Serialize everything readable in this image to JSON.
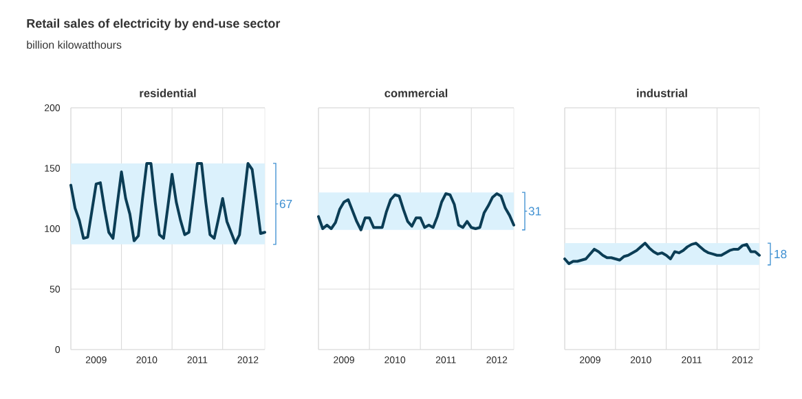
{
  "chart_data": [
    {
      "type": "line",
      "title": "Retail sales of electricity by end-use sector",
      "subtitle": "billion kilowatthours",
      "ylim": [
        0,
        200
      ],
      "yticks": [
        0,
        50,
        100,
        150,
        200
      ],
      "grid": true,
      "xlim": [
        "2009-01",
        "2012-11"
      ],
      "xticks": [
        {
          "value": "2009-01",
          "label": null
        },
        {
          "value": "2009-07",
          "label": "2009"
        },
        {
          "value": "2010-01",
          "label": null
        },
        {
          "value": "2010-07",
          "label": "2010"
        },
        {
          "value": "2011-01",
          "label": null
        },
        {
          "value": "2011-07",
          "label": "2011"
        },
        {
          "value": "2012-01",
          "label": null
        },
        {
          "value": "2012-07",
          "label": "2012"
        }
      ],
      "x": [
        "2009-01",
        "2009-02",
        "2009-03",
        "2009-04",
        "2009-05",
        "2009-06",
        "2009-07",
        "2009-08",
        "2009-09",
        "2009-10",
        "2009-11",
        "2009-12",
        "2010-01",
        "2010-02",
        "2010-03",
        "2010-04",
        "2010-05",
        "2010-06",
        "2010-07",
        "2010-08",
        "2010-09",
        "2010-10",
        "2010-11",
        "2010-12",
        "2011-01",
        "2011-02",
        "2011-03",
        "2011-04",
        "2011-05",
        "2011-06",
        "2011-07",
        "2011-08",
        "2011-09",
        "2011-10",
        "2011-11",
        "2011-12",
        "2012-01",
        "2012-02",
        "2012-03",
        "2012-04",
        "2012-05",
        "2012-06",
        "2012-07",
        "2012-08",
        "2012-09",
        "2012-10",
        "2012-11"
      ],
      "series": [
        {
          "name": "residential",
          "color": "#0b3d55",
          "values": [
            136,
            117,
            107,
            92,
            93,
            115,
            137,
            138,
            116,
            97,
            92,
            120,
            147,
            125,
            112,
            90,
            94,
            125,
            154,
            154,
            122,
            95,
            92,
            118,
            145,
            122,
            107,
            95,
            97,
            125,
            154,
            154,
            122,
            95,
            92,
            108,
            125,
            106,
            97,
            88,
            95,
            124,
            154,
            149,
            123,
            96,
            97
          ]
        }
      ],
      "bands": [
        {
          "axis": "y",
          "from": 87,
          "to": 154,
          "label": "67",
          "color": "#dbf1fc"
        }
      ]
    },
    {
      "type": "line",
      "ylim": [
        0,
        200
      ],
      "yticks": [
        0,
        50,
        100,
        150,
        200
      ],
      "grid": true,
      "tick_labels": "x",
      "xlim": [
        "2009-01",
        "2012-11"
      ],
      "xticks": [
        {
          "value": "2009-01",
          "label": null
        },
        {
          "value": "2009-07",
          "label": "2009"
        },
        {
          "value": "2010-01",
          "label": null
        },
        {
          "value": "2010-07",
          "label": "2010"
        },
        {
          "value": "2011-01",
          "label": null
        },
        {
          "value": "2011-07",
          "label": "2011"
        },
        {
          "value": "2012-01",
          "label": null
        },
        {
          "value": "2012-07",
          "label": "2012"
        }
      ],
      "x": [
        "2009-01",
        "2009-02",
        "2009-03",
        "2009-04",
        "2009-05",
        "2009-06",
        "2009-07",
        "2009-08",
        "2009-09",
        "2009-10",
        "2009-11",
        "2009-12",
        "2010-01",
        "2010-02",
        "2010-03",
        "2010-04",
        "2010-05",
        "2010-06",
        "2010-07",
        "2010-08",
        "2010-09",
        "2010-10",
        "2010-11",
        "2010-12",
        "2011-01",
        "2011-02",
        "2011-03",
        "2011-04",
        "2011-05",
        "2011-06",
        "2011-07",
        "2011-08",
        "2011-09",
        "2011-10",
        "2011-11",
        "2011-12",
        "2012-01",
        "2012-02",
        "2012-03",
        "2012-04",
        "2012-05",
        "2012-06",
        "2012-07",
        "2012-08",
        "2012-09",
        "2012-10",
        "2012-11"
      ],
      "series": [
        {
          "name": "commercial",
          "color": "#0b3d55",
          "values": [
            110,
            100,
            103,
            100,
            105,
            116,
            122,
            124,
            115,
            106,
            99,
            109,
            109,
            101,
            101,
            101,
            114,
            124,
            128,
            127,
            116,
            106,
            102,
            109,
            109,
            101,
            103,
            101,
            110,
            122,
            129,
            128,
            120,
            103,
            101,
            106,
            101,
            100,
            101,
            113,
            119,
            126,
            129,
            127,
            117,
            111,
            103
          ]
        }
      ],
      "bands": [
        {
          "axis": "y",
          "from": 99,
          "to": 130,
          "label": "31",
          "color": "#dbf1fc"
        }
      ]
    },
    {
      "type": "line",
      "ylim": [
        0,
        200
      ],
      "yticks": [
        0,
        50,
        100,
        150,
        200
      ],
      "grid": true,
      "tick_labels": "x",
      "xlim": [
        "2009-01",
        "2012-11"
      ],
      "xticks": [
        {
          "value": "2009-01",
          "label": null
        },
        {
          "value": "2009-07",
          "label": "2009"
        },
        {
          "value": "2010-01",
          "label": null
        },
        {
          "value": "2010-07",
          "label": "2010"
        },
        {
          "value": "2011-01",
          "label": null
        },
        {
          "value": "2011-07",
          "label": "2011"
        },
        {
          "value": "2012-01",
          "label": null
        },
        {
          "value": "2012-07",
          "label": "2012"
        }
      ],
      "x": [
        "2009-01",
        "2009-02",
        "2009-03",
        "2009-04",
        "2009-05",
        "2009-06",
        "2009-07",
        "2009-08",
        "2009-09",
        "2009-10",
        "2009-11",
        "2009-12",
        "2010-01",
        "2010-02",
        "2010-03",
        "2010-04",
        "2010-05",
        "2010-06",
        "2010-07",
        "2010-08",
        "2010-09",
        "2010-10",
        "2010-11",
        "2010-12",
        "2011-01",
        "2011-02",
        "2011-03",
        "2011-04",
        "2011-05",
        "2011-06",
        "2011-07",
        "2011-08",
        "2011-09",
        "2011-10",
        "2011-11",
        "2011-12",
        "2012-01",
        "2012-02",
        "2012-03",
        "2012-04",
        "2012-05",
        "2012-06",
        "2012-07",
        "2012-08",
        "2012-09",
        "2012-10",
        "2012-11"
      ],
      "series": [
        {
          "name": "industrial",
          "color": "#0b3d55",
          "values": [
            75,
            71,
            73,
            73,
            74,
            75,
            79,
            83,
            81,
            78,
            76,
            76,
            75,
            74,
            77,
            78,
            80,
            82,
            85,
            88,
            84,
            81,
            79,
            80,
            78,
            75,
            81,
            80,
            82,
            85,
            87,
            88,
            85,
            82,
            80,
            79,
            78,
            78,
            80,
            82,
            83,
            83,
            86,
            87,
            81,
            81,
            78
          ]
        }
      ],
      "bands": [
        {
          "axis": "y",
          "from": 70,
          "to": 88,
          "label": "18",
          "color": "#dbf1fc"
        }
      ]
    }
  ]
}
